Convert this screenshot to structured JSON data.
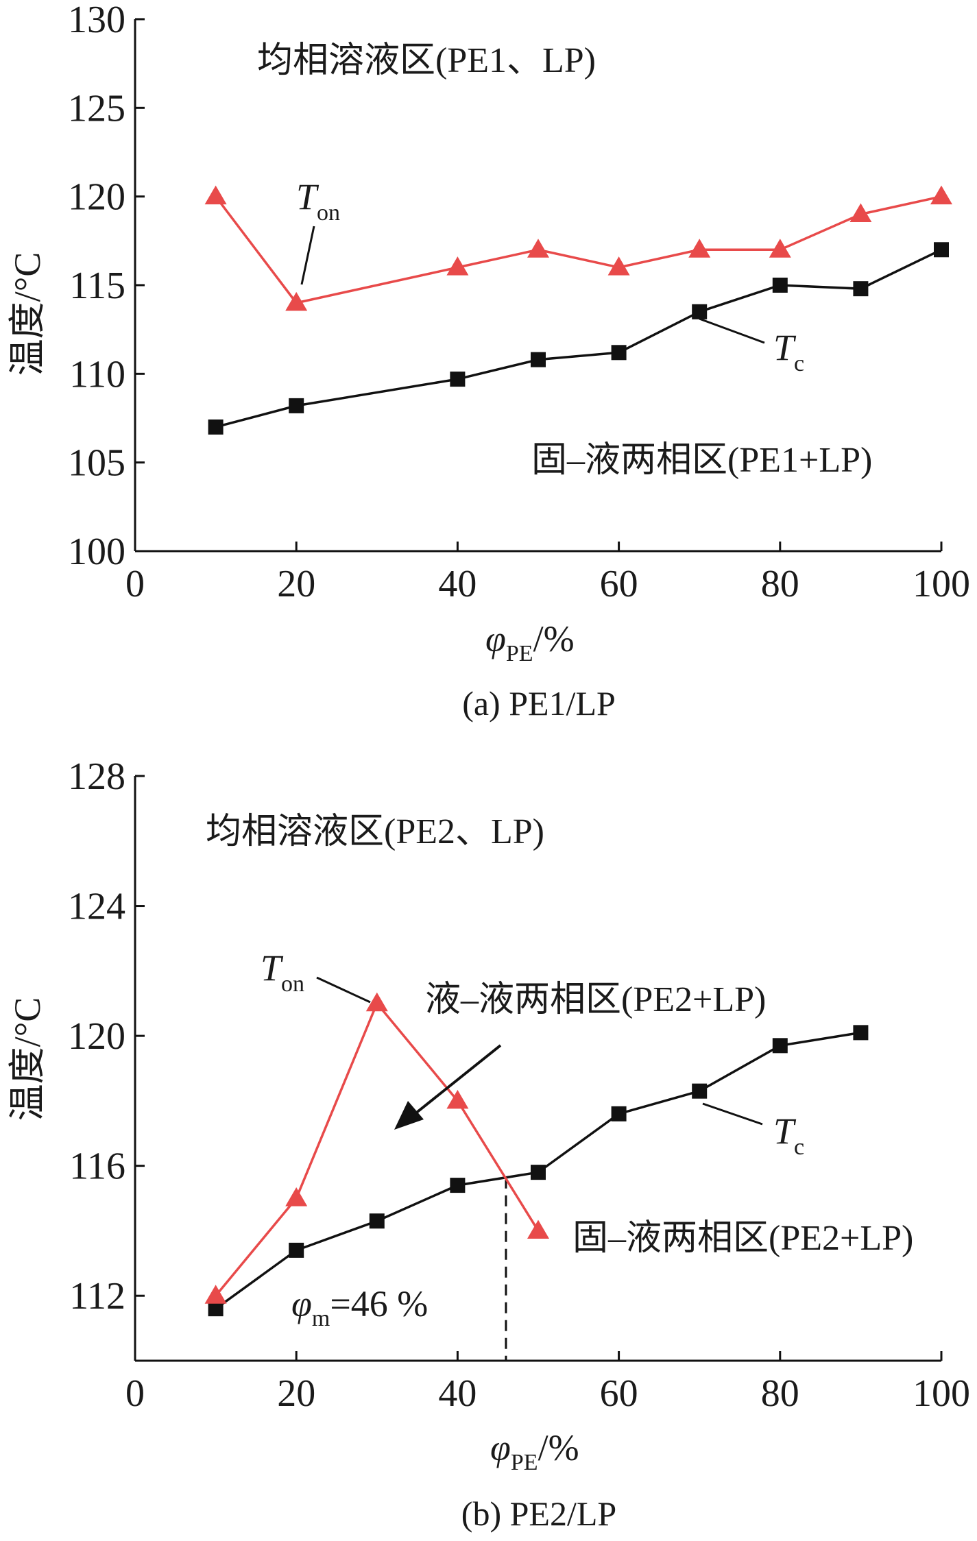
{
  "chart_data": [
    {
      "type": "line",
      "caption": "(a) PE1/LP",
      "xlabel": {
        "symbol": "φ",
        "sub": "PE",
        "unit": "/%"
      },
      "ylabel": "温度/°C",
      "xlim": [
        0,
        100
      ],
      "ylim": [
        100,
        130
      ],
      "xticks": [
        "0",
        "20",
        "40",
        "60",
        "80",
        "100"
      ],
      "yticks": [
        "100",
        "105",
        "110",
        "115",
        "120",
        "125",
        "130"
      ],
      "grid": false,
      "colors": {
        "T_on": "#e84a4a",
        "T_c": "#111111"
      },
      "series": [
        {
          "name": "T_on",
          "label_main": "T",
          "label_sub": "on",
          "marker": "triangle",
          "x": [
            10,
            20,
            40,
            50,
            60,
            70,
            80,
            90,
            100
          ],
          "y": [
            120,
            114,
            116,
            117,
            116,
            117,
            117,
            119,
            120
          ]
        },
        {
          "name": "T_c",
          "label_main": "T",
          "label_sub": "c",
          "marker": "square",
          "x": [
            10,
            20,
            40,
            50,
            60,
            70,
            80,
            90,
            100
          ],
          "y": [
            107,
            108.2,
            109.7,
            110.8,
            111.2,
            113.5,
            115,
            114.8,
            117
          ]
        }
      ],
      "annotations": {
        "upper_region": "均相溶液区(PE1、LP)",
        "lower_region": "固–液两相区(PE1+LP)"
      }
    },
    {
      "type": "line",
      "caption": "(b) PE2/LP",
      "xlabel": {
        "symbol": "φ",
        "sub": "PE",
        "unit": "/%"
      },
      "ylabel": "温度/°C",
      "xlim": [
        0,
        100
      ],
      "ylim": [
        110,
        128
      ],
      "xticks": [
        "0",
        "20",
        "40",
        "60",
        "80",
        "100"
      ],
      "yticks": [
        "112",
        "116",
        "120",
        "124",
        "128"
      ],
      "grid": false,
      "colors": {
        "T_on": "#e84a4a",
        "T_c": "#111111"
      },
      "series": [
        {
          "name": "T_on",
          "label_main": "T",
          "label_sub": "on",
          "marker": "triangle",
          "x": [
            10,
            20,
            30,
            40,
            50
          ],
          "y": [
            112,
            115,
            121,
            118,
            114
          ]
        },
        {
          "name": "T_c",
          "label_main": "T",
          "label_sub": "c",
          "marker": "square",
          "x": [
            10,
            20,
            30,
            40,
            50,
            60,
            70,
            80,
            90
          ],
          "y": [
            111.6,
            113.4,
            114.3,
            115.4,
            115.8,
            117.6,
            118.3,
            119.7,
            120.1
          ]
        }
      ],
      "intersection": {
        "x": 46,
        "label_main": "φ",
        "label_sub": "m",
        "label_rest": "=46 %"
      },
      "annotations": {
        "upper_region": "均相溶液区(PE2、LP)",
        "middle_region": "液–液两相区(PE2+LP)",
        "lower_region": "固–液两相区(PE2+LP)"
      }
    }
  ]
}
